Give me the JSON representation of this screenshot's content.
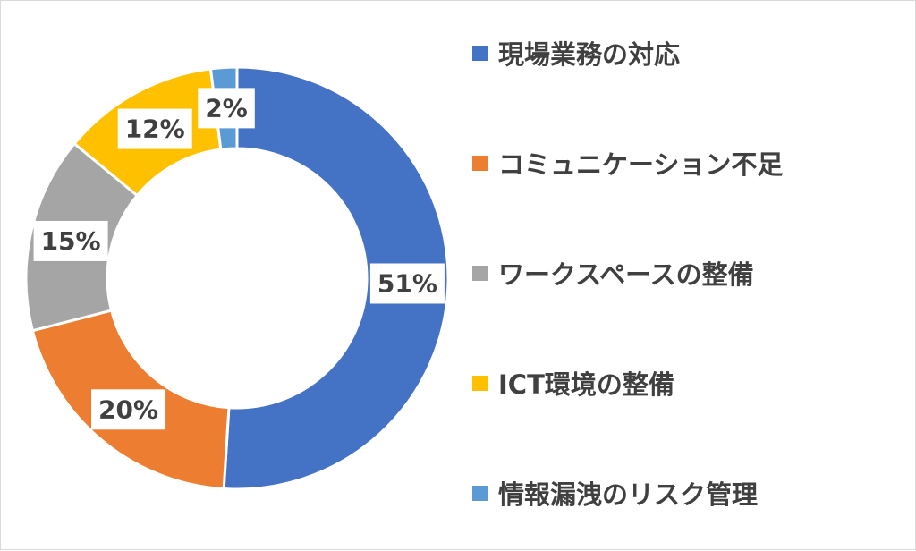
{
  "chart_data": {
    "type": "pie",
    "variant": "donut",
    "title": "",
    "categories": [
      "現場業務の対応",
      "コミュニケーション不足",
      "ワークスペースの整備",
      "ICT環境の整備",
      "情報漏洩のリスク管理"
    ],
    "values": [
      51,
      20,
      15,
      12,
      2
    ],
    "labels": [
      "51%",
      "20%",
      "15%",
      "12%",
      "2%"
    ],
    "colors": [
      "#4472C4",
      "#ED7D31",
      "#A5A5A5",
      "#FFC000",
      "#5B9BD5"
    ],
    "legend_position": "right",
    "unit": "%"
  }
}
